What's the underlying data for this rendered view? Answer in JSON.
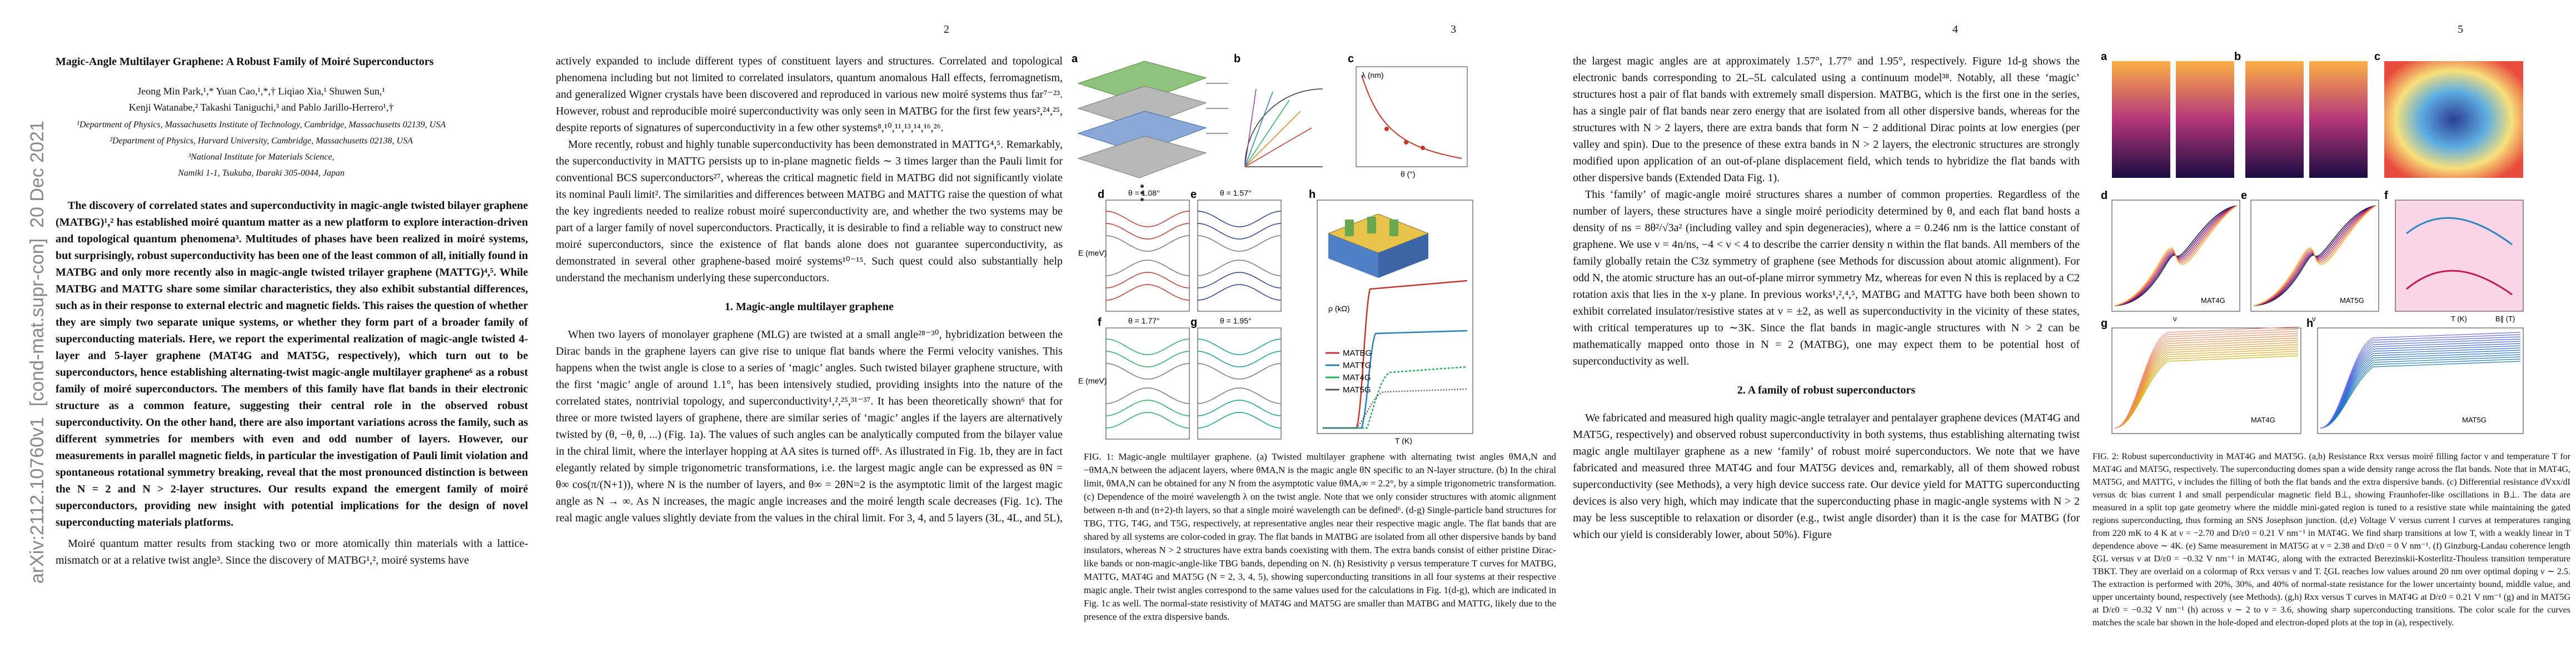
{
  "pages": [
    {
      "arxiv_stamp": "arXiv:2112.10760v1  [cond-mat.supr-con]  20 Dec 2021",
      "title": "Magic-Angle Multilayer Graphene: A Robust Family of Moiré Superconductors",
      "authors": [
        "Jeong Min Park,¹,* Yuan Cao,¹,*,† Liqiao Xia,¹ Shuwen Sun,¹",
        "Kenji Watanabe,² Takashi Taniguchi,³ and Pablo Jarillo-Herrero¹,†"
      ],
      "affiliations": [
        "¹Department of Physics, Massachusetts Institute of Technology, Cambridge, Massachusetts 02139, USA",
        "²Department of Physics, Harvard University, Cambridge, Massachusetts 02138, USA",
        "³National Institute for Materials Science,",
        "Namiki 1-1, Tsukuba, Ibaraki 305-0044, Japan"
      ],
      "abstract": "The discovery of correlated states and superconductivity in magic-angle twisted bilayer graphene (MATBG)¹,² has established moiré quantum matter as a new platform to explore interaction-driven and topological quantum phenomena³. Multitudes of phases have been realized in moiré systems, but surprisingly, robust superconductivity has been one of the least common of all, initially found in MATBG and only more recently also in magic-angle twisted trilayer graphene (MATTG)⁴,⁵. While MATBG and MATTG share some similar characteristics, they also exhibit substantial differences, such as in their response to external electric and magnetic fields. This raises the question of whether they are simply two separate unique systems, or whether they form part of a broader family of superconducting materials. Here, we report the experimental realization of magic-angle twisted 4-layer and 5-layer graphene (MAT4G and MAT5G, respectively), which turn out to be superconductors, hence establishing alternating-twist magic-angle multilayer graphene⁶ as a robust family of moiré superconductors. The members of this family have flat bands in their electronic structure as a common feature, suggesting their central role in the observed robust superconductivity. On the other hand, there are also important variations across the family, such as different symmetries for members with even and odd number of layers. However, our measurements in parallel magnetic fields, in particular the investigation of Pauli limit violation and spontaneous rotational symmetry breaking, reveal that the most pronounced distinction is between the N = 2 and N > 2-layer structures. Our results expand the emergent family of moiré superconductors, providing new insight with potential implications for the design of novel superconducting materials platforms.",
      "paragraphs": [
        "Moiré quantum matter results from stacking two or more atomically thin materials with a lattice-mismatch or at a relative twist angle³. Since the discovery of MATBG¹,², moiré systems have"
      ]
    },
    {
      "page_number": "2",
      "paragraphs": [
        "actively expanded to include different types of constituent layers and structures. Correlated and topological phenomena including but not limited to correlated insulators, quantum anomalous Hall effects, ferromagnetism, and generalized Wigner crystals have been discovered and reproduced in various new moiré systems thus far⁷⁻²³. However, robust and reproducible moiré superconductivity was only seen in MATBG for the first few years²,²⁴,²⁵, despite reports of signatures of superconductivity in a few other systems⁸,¹⁰,¹¹,¹³,¹⁴,¹⁶,²⁶.",
        "More recently, robust and highly tunable superconductivity has been demonstrated in MATTG⁴,⁵. Remarkably, the superconductivity in MATTG persists up to in-plane magnetic fields ∼ 3 times larger than the Pauli limit for conventional BCS superconductors²⁷, whereas the critical magnetic field in MATBG did not significantly violate its nominal Pauli limit². The similarities and differences between MATBG and MATTG raise the question of what the key ingredients needed to realize robust moiré superconductivity are, and whether the two systems may be part of a larger family of novel superconductors. Practically, it is desirable to find a reliable way to construct new moiré superconductors, since the existence of flat bands alone does not guarantee superconductivity, as demonstrated in several other graphene-based moiré systems¹⁰⁻¹⁵. Such quest could also substantially help understand the mechanism underlying these superconductors."
      ],
      "section_heading": "1.   Magic-angle multilayer graphene",
      "paragraphs_after": [
        "When two layers of monolayer graphene (MLG) are twisted at a small angle²⁸⁻³⁰, hybridization between the Dirac bands in the graphene layers can give rise to unique flat bands where the Fermi velocity vanishes. This happens when the twist angle is close to a series of ‘magic’ angles. Such twisted bilayer graphene structure, with the first ‘magic’ angle of around 1.1°, has been intensively studied, providing insights into the nature of the correlated states, nontrivial topology, and superconductivity¹,²,²⁵,³¹⁻³⁷. It has been theoretically shown⁶ that for three or more twisted layers of graphene, there are similar series of ‘magic’ angles if the layers are alternatively twisted by (θ, −θ, θ, ...) (Fig. 1a). The values of such angles can be analytically computed from the bilayer value in the chiral limit, where the interlayer hopping at AA sites is turned off⁶. As illustrated in Fig. 1b, they are in fact elegantly related by simple trigonometric transformations, i.e. the largest magic angle can be expressed as θN = θ∞ cos(π/(N+1)), where N is the number of layers, and θ∞ = 2θN=2 is the asymptotic limit of the largest magic angle as N → ∞. As N increases, the magic angle increases and the moiré length scale decreases (Fig. 1c). The real magic angle values slightly deviate from the values in the chiral limit. For 3, 4, and 5 layers (3L, 4L, and 5L),"
      ]
    },
    {
      "page_number": "3",
      "figure": {
        "panel_labels": [
          "a",
          "b",
          "c",
          "d",
          "e",
          "f",
          "g",
          "h"
        ],
        "annotations": [
          "θ = 1.08°",
          "θ = 1.57°",
          "θ = 1.77°",
          "θ = 1.95°",
          "E (meV)",
          "E (meV)",
          "ρ (kΩ)",
          "T (K)",
          "λ (nm)",
          "θ (°)"
        ],
        "legend": [
          "MATBG",
          "MATTG",
          "MAT4G",
          "MAT5G"
        ]
      },
      "caption": "FIG. 1: Magic-angle multilayer graphene. (a) Twisted multilayer graphene with alternating twist angles θMA,N and −θMA,N between the adjacent layers, where θMA,N is the magic angle θN specific to an N-layer structure. (b) In the chiral limit, θMA,N can be obtained for any N from the asymptotic value θMA,∞ = 2.2°, by a simple trigonometric transformation. (c) Dependence of the moiré wavelength λ on the twist angle. Note that we only consider structures with atomic alignment between n-th and (n+2)-th layers, so that a single moiré wavelength can be defined⁶. (d-g) Single-particle band structures for TBG, TTG, T4G, and T5G, respectively, at representative angles near their respective magic angle. The flat bands that are shared by all systems are color-coded in gray. The flat bands in MATBG are isolated from all other dispersive bands by band insulators, whereas N > 2 structures have extra bands coexisting with them. The extra bands consist of either pristine Dirac-like bands or non-magic-angle-like TBG bands, depending on N. (h) Resistivity ρ versus temperature T curves for MATBG, MATTG, MAT4G and MAT5G (N = 2, 3, 4, 5), showing superconducting transitions in all four systems at their respective magic angle. Their twist angles correspond to the same values used for the calculations in Fig. 1(d-g), which are indicated in Fig. 1c as well. The normal-state resistivity of MAT4G and MAT5G are smaller than MATBG and MATTG, likely due to the presence of the extra dispersive bands."
    },
    {
      "page_number": "4",
      "paragraphs": [
        "the largest magic angles are at approximately 1.57°, 1.77° and 1.95°, respectively. Figure 1d-g shows the electronic bands corresponding to 2L–5L calculated using a continuum model³⁸. Notably, all these ‘magic’ structures host a pair of flat bands with extremely small dispersion. MATBG, which is the first one in the series, has a single pair of flat bands near zero energy that are isolated from all other dispersive bands, whereas for the structures with N > 2 layers, there are extra bands that form N − 2 additional Dirac points at low energies (per valley and spin). Due to the presence of these extra bands in N > 2 layers, the electronic structures are strongly modified upon application of an out-of-plane displacement field, which tends to hybridize the flat bands with other dispersive bands (Extended Data Fig. 1).",
        "This ‘family’ of magic-angle moiré structures shares a number of common properties. Regardless of the number of layers, these structures have a single moiré periodicity determined by θ, and each flat band hosts a density of ns = 8θ²/√3a² (including valley and spin degeneracies), where a = 0.246 nm is the lattice constant of graphene. We use ν = 4n/ns, −4 < ν < 4 to describe the carrier density n within the flat bands. All members of the family globally retain the C3z symmetry of graphene (see Methods for discussion about atomic alignment). For odd N, the atomic structure has an out-of-plane mirror symmetry Mz, whereas for even N this is replaced by a C2 rotation axis that lies in the x-y plane. In previous works¹,²,⁴,⁵, MATBG and MATTG have both been shown to exhibit correlated insulator/resistive states at ν = ±2, as well as superconductivity in the vicinity of these states, with critical temperatures up to ∼3K. Since the flat bands in magic-angle structures with N > 2 can be mathematically mapped onto those in N = 2 (MATBG), one may expect them to be potential host of superconductivity as well."
      ],
      "section_heading": "2.   A family of robust superconductors",
      "paragraphs_after": [
        "We fabricated and measured high quality magic-angle tetralayer and pentalayer graphene devices (MAT4G and MAT5G, respectively) and observed robust superconductivity in both systems, thus establishing alternating twist magic angle multilayer graphene as a new ‘family’ of robust moiré superconductors. We note that we have fabricated and measured three MAT4G and four MAT5G devices and, remarkably, all of them showed robust superconductivity (see Methods), a very high device success rate. Our device yield for MATTG superconducting devices is also very high, which may indicate that the superconducting phase in magic-angle systems with N > 2 may be less susceptible to relaxation or disorder (e.g., twist angle disorder) than it is the case for MATBG (for which our yield is considerably lower, about 50%). Figure"
      ]
    },
    {
      "page_number": "5",
      "figure": {
        "panel_labels": [
          "a",
          "b",
          "c",
          "d",
          "e",
          "f",
          "g",
          "h"
        ],
        "annotations": [
          "MAT4G",
          "MAT5G",
          "MAT4G",
          "MAT5G",
          "ν",
          "ν",
          "T (K)",
          "B∥ (T)"
        ]
      },
      "caption": "FIG. 2: Robust superconductivity in MAT4G and MAT5G. (a,b) Resistance Rxx versus moiré filling factor ν and temperature T for MAT4G and MAT5G, respectively. The superconducting domes span a wide density range across the flat bands. Note that in MAT4G, MAT5G, and MATTG, ν includes the filling of both the flat bands and the extra dispersive bands. (c) Differential resistance dVxx/dI versus dc bias current I and small perpendicular magnetic field B⊥, showing Fraunhofer-like oscillations in B⊥. The data are measured in a split top gate geometry where the middle mini-gated region is tuned to a resistive state while maintaining the gated regions superconducting, thus forming an SNS Josephson junction. (d,e) Voltage V versus current I curves at temperatures ranging from 220 mK to 4 K at ν = −2.70 and D/ε0 = 0.21 V nm⁻¹ in MAT4G. We find sharp transitions at low T, with a weakly linear in T dependence above ∼ 4K. (e) Same measurement in MAT5G at ν = 2.38 and D/ε0 = 0 V nm⁻¹. (f) Ginzburg-Landau coherence length ξGL versus ν at D/ε0 = −0.32 V nm⁻¹ in MAT4G, along with the extracted Berezinskii-Kosterlitz-Thouless transition temperature TBKT. They are overlaid on a colormap of Rxx versus ν and T. ξGL reaches low values around 20 nm over optimal doping ν ∼ 2.5. The extraction is performed with 20%, 30%, and 40% of normal-state resistance for the lower uncertainty bound, middle value, and upper uncertainty bound, respectively (see Methods). (g,h) Rxx versus T curves in MAT4G at D/ε0 = 0.21 V nm⁻¹ (g) and in MAT5G at D/ε0 = −0.32 V nm⁻¹ (h) across ν ∼ 2 to ν = 3.6, showing sharp superconducting transitions. The color scale for the curves matches the scale bar shown in the hole-doped and electron-doped plots at the top in (a), respectively."
    }
  ]
}
